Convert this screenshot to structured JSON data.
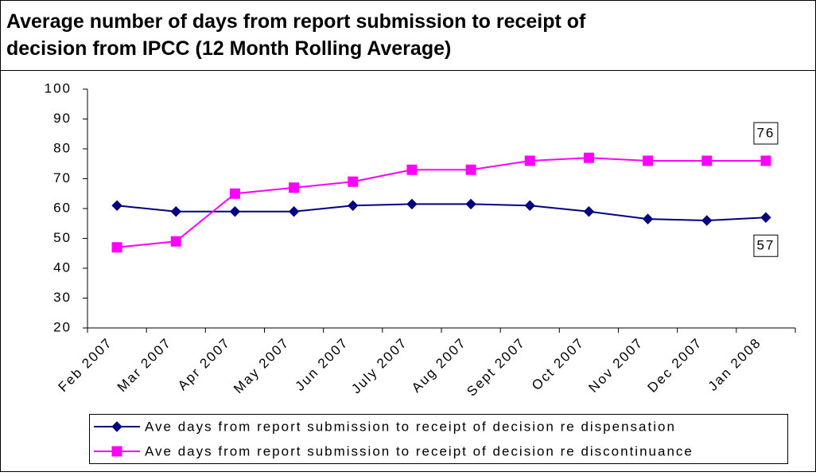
{
  "chart_data": {
    "type": "line",
    "title": "Average number of days from report submission to receipt of decision from IPCC (12 Month Rolling Average)",
    "categories": [
      "Feb 2007",
      "Mar 2007",
      "Apr 2007",
      "May 2007",
      "Jun 2007",
      "July 2007",
      "Aug 2007",
      "Sept 2007",
      "Oct 2007",
      "Nov 2007",
      "Dec 2007",
      "Jan 2008"
    ],
    "series": [
      {
        "name": "Ave days from report submission to receipt of decision re dispensation",
        "color": "#000080",
        "marker": "diamond",
        "values": [
          61,
          59,
          59,
          59,
          61,
          61.5,
          61.5,
          61,
          59,
          56.5,
          56,
          57
        ]
      },
      {
        "name": "Ave days from report submission to receipt of decision re discontinuance",
        "color": "#ff00ff",
        "marker": "square",
        "values": [
          47,
          49,
          65,
          67,
          69,
          73,
          73,
          76,
          77,
          76,
          76,
          76
        ]
      }
    ],
    "ylim": [
      20,
      100
    ],
    "yticks": [
      20,
      30,
      40,
      50,
      60,
      70,
      80,
      90,
      100
    ],
    "grid": false,
    "legend": "bottom"
  }
}
